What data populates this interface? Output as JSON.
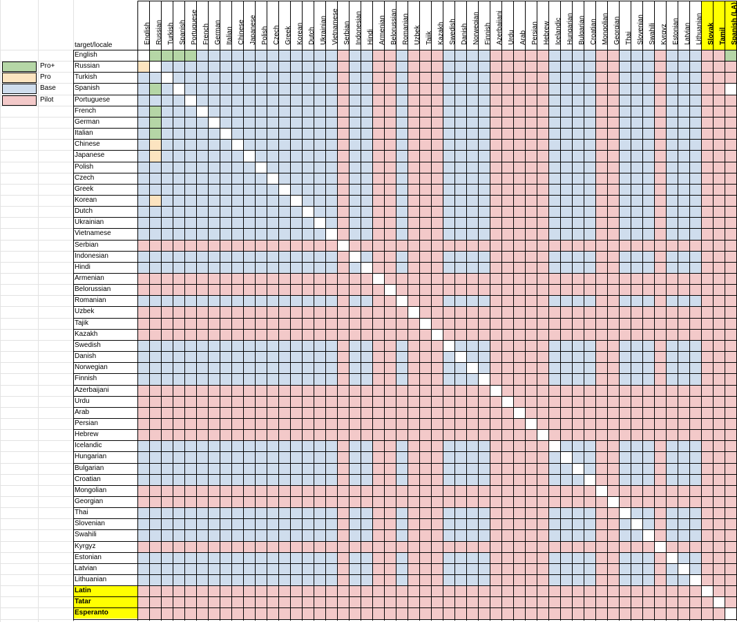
{
  "sheet": {
    "corner_label": "target/locale",
    "legend": [
      {
        "label": "Pro+",
        "color": "#b5d6a6"
      },
      {
        "label": "Pro",
        "color": "#fce4c0"
      },
      {
        "label": "Base",
        "color": "#cfdded"
      },
      {
        "label": "Pilot",
        "color": "#f3c9c9"
      }
    ],
    "columns": [
      {
        "label": "English",
        "highlight": false
      },
      {
        "label": "Russian",
        "highlight": false
      },
      {
        "label": "Turkish",
        "highlight": false
      },
      {
        "label": "Spanish",
        "highlight": false
      },
      {
        "label": "Portuguese",
        "highlight": false
      },
      {
        "label": "French",
        "highlight": false
      },
      {
        "label": "German",
        "highlight": false
      },
      {
        "label": "Italian",
        "highlight": false
      },
      {
        "label": "Chinese",
        "highlight": false
      },
      {
        "label": "Japanese",
        "highlight": false
      },
      {
        "label": "Polish",
        "highlight": false
      },
      {
        "label": "Czech",
        "highlight": false
      },
      {
        "label": "Greek",
        "highlight": false
      },
      {
        "label": "Korean",
        "highlight": false
      },
      {
        "label": "Dutch",
        "highlight": false
      },
      {
        "label": "Ukrainian",
        "highlight": false
      },
      {
        "label": "Vietnamese",
        "highlight": false
      },
      {
        "label": "Serbian",
        "highlight": false
      },
      {
        "label": "Indonesian",
        "highlight": false
      },
      {
        "label": "Hindi",
        "highlight": false
      },
      {
        "label": "Armenian",
        "highlight": false
      },
      {
        "label": "Belorussian",
        "highlight": false
      },
      {
        "label": "Romanian",
        "highlight": false
      },
      {
        "label": "Uzbek",
        "highlight": false
      },
      {
        "label": "Tajik",
        "highlight": false
      },
      {
        "label": "Kazakh",
        "highlight": false
      },
      {
        "label": "Swedish",
        "highlight": false
      },
      {
        "label": "Danish",
        "highlight": false
      },
      {
        "label": "Norwegian",
        "highlight": false
      },
      {
        "label": "Finnish",
        "highlight": false
      },
      {
        "label": "Azerbaijani",
        "highlight": false
      },
      {
        "label": "Urdu",
        "highlight": false
      },
      {
        "label": "Arab",
        "highlight": false
      },
      {
        "label": "Persian",
        "highlight": false
      },
      {
        "label": "Hebrew",
        "highlight": false
      },
      {
        "label": "Icelandic",
        "highlight": false
      },
      {
        "label": "Hungarian",
        "highlight": false
      },
      {
        "label": "Bulgarian",
        "highlight": false
      },
      {
        "label": "Croatian",
        "highlight": false
      },
      {
        "label": "Mongolian",
        "highlight": false
      },
      {
        "label": "Georgian",
        "highlight": false
      },
      {
        "label": "Thai",
        "highlight": false
      },
      {
        "label": "Slovenian",
        "highlight": false
      },
      {
        "label": "Swahili",
        "highlight": false
      },
      {
        "label": "Kyrgyz",
        "highlight": false
      },
      {
        "label": "Estonian",
        "highlight": false
      },
      {
        "label": "Latvian",
        "highlight": false
      },
      {
        "label": "Lithuanian",
        "highlight": false
      },
      {
        "label": "Slovak",
        "highlight": true
      },
      {
        "label": "Tamil",
        "highlight": true
      },
      {
        "label": "Spanish (LA)",
        "highlight": true
      }
    ],
    "rows": [
      {
        "label": "English",
        "highlight": false
      },
      {
        "label": "Russian",
        "highlight": false
      },
      {
        "label": "Turkish",
        "highlight": false
      },
      {
        "label": "Spanish",
        "highlight": false
      },
      {
        "label": "Portuguese",
        "highlight": false
      },
      {
        "label": "French",
        "highlight": false
      },
      {
        "label": "German",
        "highlight": false
      },
      {
        "label": "Italian",
        "highlight": false
      },
      {
        "label": "Chinese",
        "highlight": false
      },
      {
        "label": "Japanese",
        "highlight": false
      },
      {
        "label": "Polish",
        "highlight": false
      },
      {
        "label": "Czech",
        "highlight": false
      },
      {
        "label": "Greek",
        "highlight": false
      },
      {
        "label": "Korean",
        "highlight": false
      },
      {
        "label": "Dutch",
        "highlight": false
      },
      {
        "label": "Ukrainian",
        "highlight": false
      },
      {
        "label": "Vietnamese",
        "highlight": false
      },
      {
        "label": "Serbian",
        "highlight": false
      },
      {
        "label": "Indonesian",
        "highlight": false
      },
      {
        "label": "Hindi",
        "highlight": false
      },
      {
        "label": "Armenian",
        "highlight": false
      },
      {
        "label": "Belorussian",
        "highlight": false
      },
      {
        "label": "Romanian",
        "highlight": false
      },
      {
        "label": "Uzbek",
        "highlight": false
      },
      {
        "label": "Tajik",
        "highlight": false
      },
      {
        "label": "Kazakh",
        "highlight": false
      },
      {
        "label": "Swedish",
        "highlight": false
      },
      {
        "label": "Danish",
        "highlight": false
      },
      {
        "label": "Norwegian",
        "highlight": false
      },
      {
        "label": "Finnish",
        "highlight": false
      },
      {
        "label": "Azerbaijani",
        "highlight": false
      },
      {
        "label": "Urdu",
        "highlight": false
      },
      {
        "label": "Arab",
        "highlight": false
      },
      {
        "label": "Persian",
        "highlight": false
      },
      {
        "label": "Hebrew",
        "highlight": false
      },
      {
        "label": "Icelandic",
        "highlight": false
      },
      {
        "label": "Hungarian",
        "highlight": false
      },
      {
        "label": "Bulgarian",
        "highlight": false
      },
      {
        "label": "Croatian",
        "highlight": false
      },
      {
        "label": "Mongolian",
        "highlight": false
      },
      {
        "label": "Georgian",
        "highlight": false
      },
      {
        "label": "Thai",
        "highlight": false
      },
      {
        "label": "Slovenian",
        "highlight": false
      },
      {
        "label": "Swahili",
        "highlight": false
      },
      {
        "label": "Kyrgyz",
        "highlight": false
      },
      {
        "label": "Estonian",
        "highlight": false
      },
      {
        "label": "Latvian",
        "highlight": false
      },
      {
        "label": "Lithuanian",
        "highlight": false
      },
      {
        "label": "Latin",
        "highlight": true
      },
      {
        "label": "Tatar",
        "highlight": true
      },
      {
        "label": "Esperanto",
        "highlight": true
      }
    ],
    "pilot_indices": [
      17,
      20,
      21,
      23,
      24,
      25,
      30,
      31,
      32,
      33,
      34,
      39,
      40,
      44,
      48,
      49,
      50
    ],
    "pro_plus_cells": [
      [
        0,
        1
      ],
      [
        0,
        2
      ],
      [
        0,
        3
      ],
      [
        0,
        4
      ],
      [
        0,
        50
      ],
      [
        3,
        1
      ],
      [
        5,
        1
      ],
      [
        6,
        1
      ],
      [
        7,
        1
      ]
    ],
    "pro_cells": [
      [
        1,
        0
      ],
      [
        8,
        1
      ],
      [
        9,
        1
      ],
      [
        13,
        1
      ]
    ],
    "white_cells": [
      [
        3,
        50
      ]
    ],
    "colors": {
      "pro_plus": "#b5d6a6",
      "pro": "#fce4c0",
      "base": "#cfdded",
      "pilot": "#f3c9c9",
      "diagonal": "#ffffff",
      "highlight": "#ffff00"
    }
  }
}
